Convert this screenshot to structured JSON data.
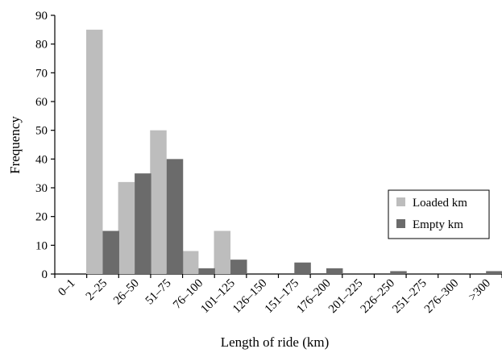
{
  "chart_data": {
    "type": "bar",
    "xlabel": "Length of ride (km)",
    "ylabel": "Frequency",
    "ylim": [
      0,
      90
    ],
    "yticks": [
      0,
      10,
      20,
      30,
      40,
      50,
      60,
      70,
      80,
      90
    ],
    "grid": false,
    "legend_position": "right",
    "categories": [
      "0–1",
      "2–25",
      "26–50",
      "51–75",
      "76–100",
      "101–125",
      "126–150",
      "151–175",
      "176–200",
      "201–225",
      "226–250",
      "251–275",
      "276–300",
      ">300"
    ],
    "series": [
      {
        "name": "Loaded km",
        "color": "#bdbdbd",
        "values": [
          0,
          85,
          32,
          50,
          8,
          15,
          0,
          0,
          0,
          0,
          0,
          0,
          0,
          0
        ]
      },
      {
        "name": "Empty km",
        "color": "#6b6b6b",
        "values": [
          0,
          15,
          35,
          40,
          2,
          5,
          0,
          4,
          2,
          0,
          1,
          0,
          0,
          1
        ]
      }
    ]
  }
}
